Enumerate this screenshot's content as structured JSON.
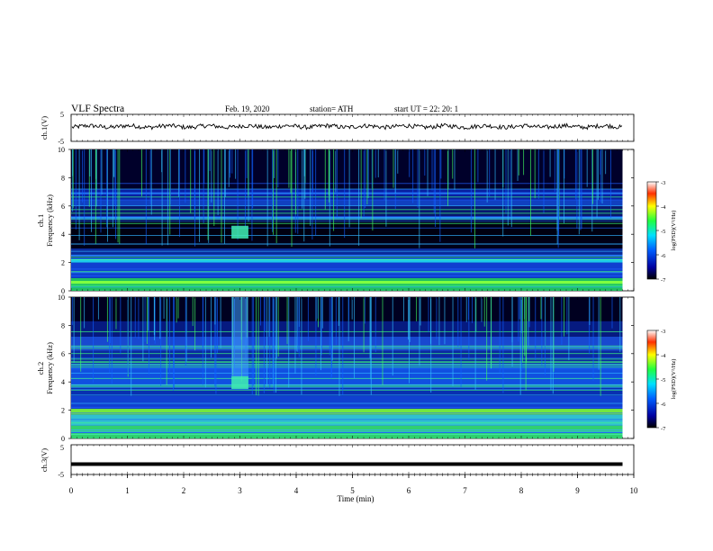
{
  "header": {
    "title": "VLF  Spectra",
    "date": "Feb. 19, 2020",
    "station": "station= ATH",
    "start": "start  UT  =   22: 20: 1"
  },
  "chart_data": [
    {
      "type": "line",
      "panel": "ch1",
      "ylabel": "ch.1(V)",
      "ylim": [
        -5,
        5
      ],
      "yticklabels": [
        "5",
        "-5"
      ],
      "xlim": [
        0,
        10
      ],
      "note": "noisy waveform around ~0.5 V",
      "baseline": 0.5
    },
    {
      "type": "heatmap",
      "panel": "ch1-spectrogram",
      "ylabel_top": "ch.1",
      "ylabel": "Frequency (kHz)",
      "ylim": [
        0,
        10
      ],
      "yticks": [
        0,
        2,
        4,
        6,
        8,
        10
      ],
      "xlim": [
        0,
        9.8
      ],
      "burst": {
        "t_start": 2.85,
        "t_end": 3.15,
        "f_low": 3.7,
        "f_high": 4.6
      },
      "colorbar": {
        "label": "log(PSD)(V²/Hz)",
        "range": [
          -7,
          -3
        ],
        "ticks": [
          "-3",
          "-4",
          "-5",
          "-6",
          "-7"
        ]
      }
    },
    {
      "type": "heatmap",
      "panel": "ch2-spectrogram",
      "ylabel_top": "ch.2",
      "ylabel": "Frequency (kHz)",
      "ylim": [
        0,
        10
      ],
      "yticks": [
        0,
        2,
        4,
        6,
        8,
        10
      ],
      "xlim": [
        0,
        9.8
      ],
      "burst": {
        "t_start": 2.85,
        "t_end": 3.15,
        "f_low": 3.5,
        "f_high": 10
      },
      "colorbar": {
        "label": "log(PSD)(V²/Hz)",
        "range": [
          -7,
          -3
        ],
        "ticks": [
          "-3",
          "-4",
          "-5",
          "-6",
          "-7"
        ]
      }
    },
    {
      "type": "line",
      "panel": "ch3",
      "ylabel": "ch.3(V)",
      "ylim": [
        -5,
        5
      ],
      "yticklabels": [
        "5",
        "-5"
      ],
      "xlim": [
        0,
        10
      ],
      "baseline": -1.5
    }
  ],
  "xaxis": {
    "label": "Time  (min)",
    "ticks": [
      "0",
      "1",
      "2",
      "3",
      "4",
      "5",
      "6",
      "7",
      "8",
      "9",
      "10"
    ]
  },
  "colors": {
    "background_dark": "#000020",
    "spectro_blue": "#1030c0",
    "spectro_cyan": "#20c0ff",
    "spectro_green": "#30ff60",
    "spectro_yellow": "#ffe020",
    "spectro_red": "#ff2020"
  }
}
